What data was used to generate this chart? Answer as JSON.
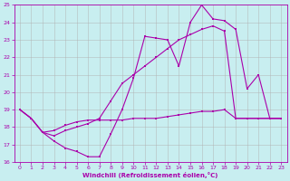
{
  "xlabel": "Windchill (Refroidissement éolien,°C)",
  "background_color": "#c8eef0",
  "grid_color": "#b0b0b0",
  "line_color": "#aa00aa",
  "xlim": [
    -0.5,
    23.5
  ],
  "ylim": [
    16,
    25
  ],
  "yticks": [
    16,
    17,
    18,
    19,
    20,
    21,
    22,
    23,
    24,
    25
  ],
  "xticks": [
    0,
    1,
    2,
    3,
    4,
    5,
    6,
    7,
    8,
    9,
    10,
    11,
    12,
    13,
    14,
    15,
    16,
    17,
    18,
    19,
    20,
    21,
    22,
    23
  ],
  "s1x": [
    0,
    1,
    2,
    3,
    4,
    5,
    6,
    7,
    8,
    9,
    10,
    11,
    12,
    13,
    14,
    15,
    16,
    17,
    18,
    19,
    20,
    21,
    22,
    23
  ],
  "s1y": [
    19.0,
    18.5,
    17.7,
    17.2,
    16.8,
    16.6,
    16.3,
    16.3,
    17.6,
    19.0,
    20.8,
    23.2,
    23.1,
    23.0,
    21.5,
    24.0,
    25.0,
    24.2,
    24.1,
    23.6,
    20.2,
    21.0,
    18.5,
    18.5
  ],
  "s2x": [
    0,
    1,
    2,
    3,
    4,
    5,
    6,
    7,
    8,
    9,
    10,
    11,
    12,
    13,
    14,
    15,
    16,
    17,
    18,
    19,
    20,
    21,
    22,
    23
  ],
  "s2y": [
    19.0,
    18.5,
    17.7,
    17.5,
    17.8,
    18.0,
    18.2,
    18.5,
    19.5,
    20.5,
    21.0,
    21.5,
    22.0,
    22.5,
    23.0,
    23.3,
    23.6,
    23.8,
    23.5,
    18.5,
    18.5,
    18.5,
    18.5,
    18.5
  ],
  "s3x": [
    0,
    1,
    2,
    3,
    4,
    5,
    6,
    7,
    8,
    9,
    10,
    11,
    12,
    13,
    14,
    15,
    16,
    17,
    18,
    19,
    20,
    21,
    22,
    23
  ],
  "s3y": [
    19.0,
    18.5,
    17.7,
    17.8,
    18.1,
    18.3,
    18.4,
    18.4,
    18.4,
    18.4,
    18.5,
    18.5,
    18.5,
    18.6,
    18.7,
    18.8,
    18.9,
    18.9,
    19.0,
    18.5,
    18.5,
    18.5,
    18.5,
    18.5
  ]
}
